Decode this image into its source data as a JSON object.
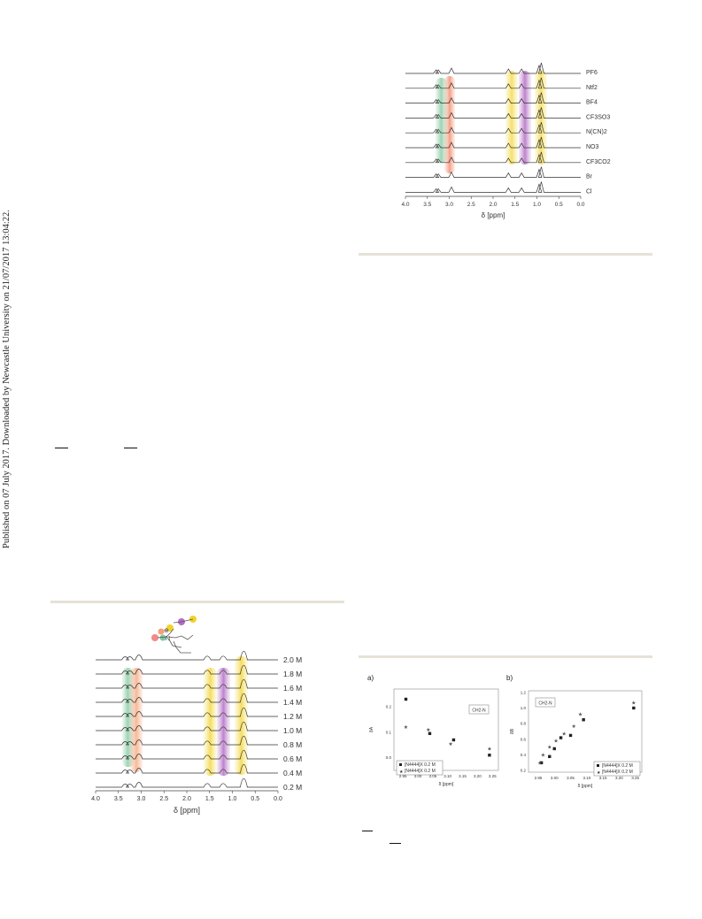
{
  "sidebar": {
    "text": "Published on 07 July 2017. Downloaded by Newcastle University on 21/07/2017 13:04:22."
  },
  "figure_top": {
    "anion_labels": [
      "PF6",
      "Ntf2",
      "BF4",
      "CF3SO3",
      "N(CN)2",
      "NO3",
      "CF3CO2",
      "Br",
      "Cl"
    ],
    "x_ticks": [
      "4.0",
      "3.5",
      "3.0",
      "2.5",
      "2.0",
      "1.5",
      "1.0",
      "0.5",
      "0.0"
    ],
    "x_label": "δ [ppm]"
  },
  "figure_conc": {
    "conc_labels": [
      "2.0 M",
      "1.8 M",
      "1.6 M",
      "1.4 M",
      "1.2 M",
      "1.0 M",
      "0.8 M",
      "0.6 M",
      "0.4 M",
      "0.2 M"
    ],
    "x_ticks": [
      "4.0",
      "3.5",
      "3.0",
      "2.5",
      "2.0",
      "1.5",
      "1.0",
      "0.5",
      "0.0"
    ],
    "x_label": "δ [ppm]",
    "charge_symbol": "⊕",
    "atom_label": "N"
  },
  "chart_data": [
    {
      "type": "scatter",
      "panel_label": "a)",
      "annotation": "CH2-N",
      "xlabel": "δ [ppm]",
      "ylabel": "δA",
      "x_ticks": [
        "2.95",
        "3.00",
        "3.05",
        "3.10",
        "3.15",
        "3.20",
        "3.25"
      ],
      "y_ticks": [
        "0.2",
        "0.1",
        "0.0"
      ],
      "xlim": [
        2.92,
        3.27
      ],
      "ylim": [
        -0.05,
        0.27
      ],
      "legend": [
        "[N4444]X 0.2 M",
        "[N4444]X 0.2 M"
      ],
      "series": [
        {
          "name": "[N4444]X 0.2 M",
          "marker": "square",
          "points": [
            [
              2.96,
              0.23
            ],
            [
              3.04,
              0.095
            ],
            [
              3.12,
              0.07
            ],
            [
              3.24,
              0.01
            ]
          ]
        },
        {
          "name": "[N4444]X 0.2 M",
          "marker": "star",
          "points": [
            [
              2.96,
              0.12
            ],
            [
              3.035,
              0.11
            ],
            [
              3.11,
              0.055
            ],
            [
              3.24,
              0.035
            ]
          ]
        }
      ]
    },
    {
      "type": "scatter",
      "panel_label": "b)",
      "annotation": "CH2-N",
      "xlabel": "δ [ppm]",
      "ylabel": "δB",
      "x_ticks": [
        "2.95",
        "3.00",
        "3.05",
        "3.10",
        "3.15",
        "3.20",
        "3.25"
      ],
      "y_ticks": [
        "1.2",
        "1.0",
        "0.8",
        "0.6",
        "0.4",
        "0.2"
      ],
      "xlim": [
        2.92,
        3.27
      ],
      "ylim": [
        0.18,
        1.22
      ],
      "legend": [
        "[N4444]X 0.2 M",
        "[N4444]X 0.2 M"
      ],
      "series": [
        {
          "name": "[N4444]X 0.2 M",
          "marker": "square",
          "points": [
            [
              2.96,
              0.3
            ],
            [
              2.985,
              0.38
            ],
            [
              3.0,
              0.48
            ],
            [
              3.02,
              0.62
            ],
            [
              3.05,
              0.65
            ],
            [
              3.09,
              0.85
            ],
            [
              3.245,
              1.0
            ]
          ]
        },
        {
          "name": "[N4444]X 0.2 M",
          "marker": "star",
          "points": [
            [
              2.955,
              0.3
            ],
            [
              2.965,
              0.4
            ],
            [
              2.985,
              0.5
            ],
            [
              3.005,
              0.58
            ],
            [
              3.03,
              0.67
            ],
            [
              3.06,
              0.77
            ],
            [
              3.08,
              0.92
            ],
            [
              3.245,
              1.07
            ]
          ]
        }
      ]
    }
  ]
}
